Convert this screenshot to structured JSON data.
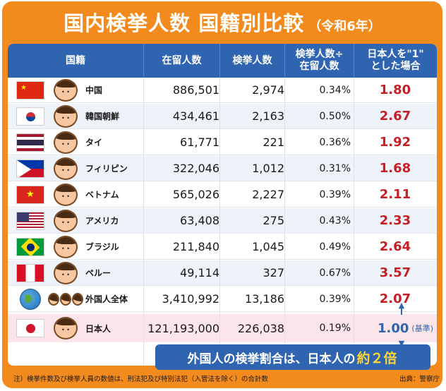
{
  "title": "国内検挙人数 国籍別比較",
  "era": "（令和6年）",
  "headers": [
    "国籍",
    "在留人数",
    "検挙人数",
    "検挙人数÷",
    "在留人数",
    "日本人を\"1\"",
    "とした場合"
  ],
  "rows": [
    {
      "flag": "china-flag",
      "name": "中国",
      "residents": "886,501",
      "arrests": "2,974",
      "rate": "0.34%",
      "ratio": "1.80"
    },
    {
      "flag": "south-korea-flag",
      "name": "韓国朝鮮",
      "residents": "434,461",
      "arrests": "2,163",
      "rate": "0.50%",
      "ratio": "2.67"
    },
    {
      "flag": "thailand-flag",
      "name": "タイ",
      "residents": "61,771",
      "arrests": "221",
      "rate": "0.36%",
      "ratio": "1.92"
    },
    {
      "flag": "philippines-flag",
      "name": "フィリピン",
      "residents": "322,046",
      "arrests": "1,012",
      "rate": "0.31%",
      "ratio": "1.68"
    },
    {
      "flag": "vietnam-flag",
      "name": "ベトナム",
      "residents": "565,026",
      "arrests": "2,227",
      "rate": "0.39%",
      "ratio": "2.11"
    },
    {
      "flag": "usa-flag",
      "name": "アメリカ",
      "residents": "63,408",
      "arrests": "275",
      "rate": "0.43%",
      "ratio": "2.33"
    },
    {
      "flag": "brazil-flag",
      "name": "ブラジル",
      "residents": "211,840",
      "arrests": "1,045",
      "rate": "0.49%",
      "ratio": "2.64"
    },
    {
      "flag": "peru-flag",
      "name": "ペルー",
      "residents": "49,114",
      "arrests": "327",
      "rate": "0.67%",
      "ratio": "3.57"
    },
    {
      "flag": "globe-icon",
      "name": "外国人全体",
      "residents": "3,410,992",
      "arrests": "13,186",
      "rate": "0.39%",
      "ratio": "2.07"
    }
  ],
  "japan": {
    "flag": "japan-flag",
    "name": "日本人",
    "residents": "121,193,000",
    "arrests": "226,038",
    "rate": "0.19%",
    "ratio": "1.00",
    "note": "(基準)"
  },
  "banner": {
    "pre": "外国人の検挙割合は、日本人の",
    "highlight": "約２倍"
  },
  "footnote": "注）検挙件数及び検挙人員の数値は、刑法犯及び特別法犯（入管法を除く）の合計数",
  "source": "出典：警察庁",
  "colors": {
    "orange": "#f28a1d",
    "blue": "#2f64b1",
    "red": "#c62026",
    "japan_row": "#fbe4ea"
  }
}
